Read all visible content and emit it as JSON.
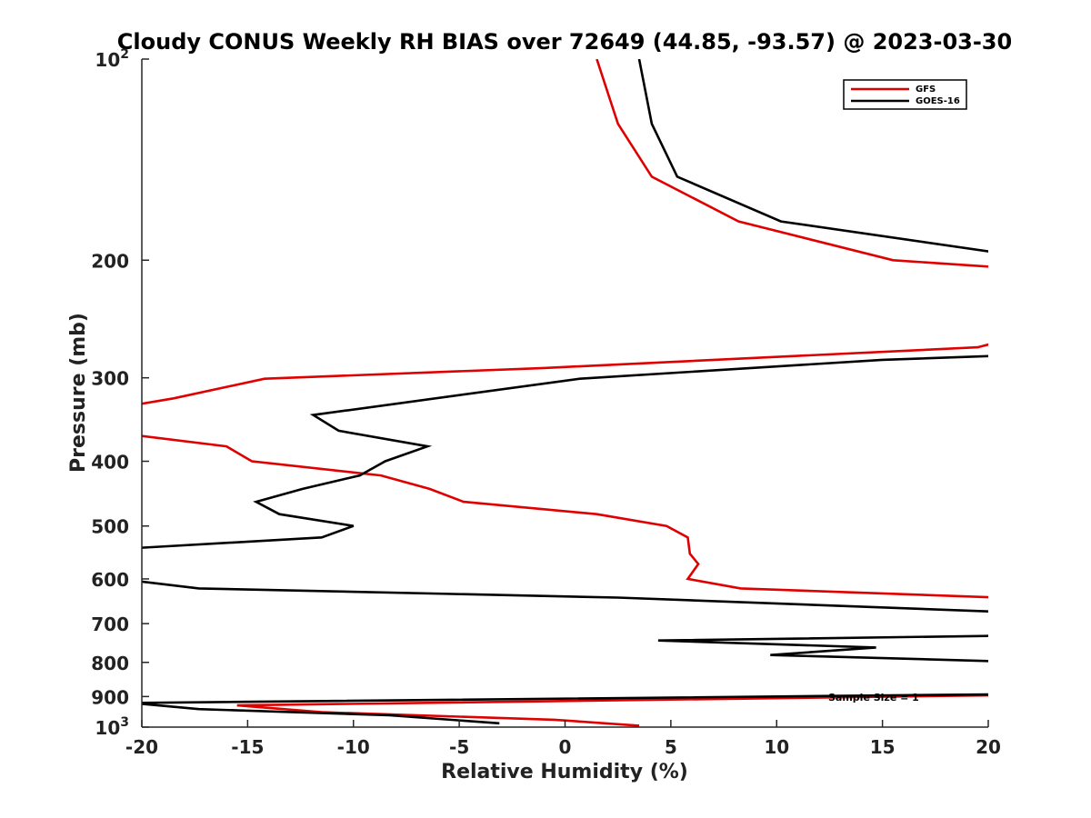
{
  "chart_data": {
    "type": "line",
    "title": "Cloudy CONUS Weekly RH BIAS over 72649 (44.85, -93.57) @ 2023-03-30",
    "xlabel": "Relative Humidity (%)",
    "ylabel": "Pressure (mb)",
    "xlim": [
      -20,
      20
    ],
    "ylim": [
      100,
      1000
    ],
    "yscale": "log",
    "y_reversed": true,
    "grid": false,
    "legend_position": "top-right",
    "x_ticks": [
      "-20",
      "-15",
      "-10",
      "-5",
      "0",
      "5",
      "10",
      "15",
      "20"
    ],
    "y_ticks": [
      {
        "value": 100,
        "base": "10",
        "exp": "2"
      },
      {
        "value": 200,
        "label": "200"
      },
      {
        "value": 300,
        "label": "300"
      },
      {
        "value": 400,
        "label": "400"
      },
      {
        "value": 500,
        "label": "500"
      },
      {
        "value": 600,
        "label": "600"
      },
      {
        "value": 700,
        "label": "700"
      },
      {
        "value": 800,
        "label": "800"
      },
      {
        "value": 900,
        "label": "900"
      },
      {
        "value": 1000,
        "base": "10",
        "exp": "3"
      }
    ],
    "annotation": "Sample Size = 1",
    "series": [
      {
        "name": "GFS",
        "color": "#e00000",
        "points": [
          {
            "x": 1.5,
            "y": 100
          },
          {
            "x": 2.5,
            "y": 125
          },
          {
            "x": 4.1,
            "y": 150
          },
          {
            "x": 8.2,
            "y": 175
          },
          {
            "x": 15.5,
            "y": 200
          },
          {
            "x": 20.5,
            "y": 205
          },
          {
            "x": 20.5,
            "y": 265
          },
          {
            "x": 19.5,
            "y": 270
          },
          {
            "x": -1.0,
            "y": 290
          },
          {
            "x": -14.2,
            "y": 301
          },
          {
            "x": -18.5,
            "y": 322
          },
          {
            "x": -20.5,
            "y": 330
          },
          {
            "x": -20.5,
            "y": 365
          },
          {
            "x": -16.0,
            "y": 380
          },
          {
            "x": -14.8,
            "y": 400
          },
          {
            "x": -8.7,
            "y": 420
          },
          {
            "x": -6.4,
            "y": 440
          },
          {
            "x": -4.8,
            "y": 460
          },
          {
            "x": 1.5,
            "y": 480
          },
          {
            "x": 4.8,
            "y": 500
          },
          {
            "x": 5.8,
            "y": 520
          },
          {
            "x": 5.9,
            "y": 550
          },
          {
            "x": 6.3,
            "y": 570
          },
          {
            "x": 5.8,
            "y": 600
          },
          {
            "x": 8.3,
            "y": 620
          },
          {
            "x": 20.5,
            "y": 640
          },
          {
            "x": 20.5,
            "y": 896
          },
          {
            "x": -15.5,
            "y": 928
          },
          {
            "x": -11.5,
            "y": 950
          },
          {
            "x": -0.5,
            "y": 975
          },
          {
            "x": 3.5,
            "y": 995
          }
        ]
      },
      {
        "name": "GOES-16",
        "color": "#000000",
        "points": [
          {
            "x": 3.5,
            "y": 100
          },
          {
            "x": 4.1,
            "y": 125
          },
          {
            "x": 5.3,
            "y": 150
          },
          {
            "x": 10.2,
            "y": 175
          },
          {
            "x": 20.5,
            "y": 195
          },
          {
            "x": 20.5,
            "y": 278
          },
          {
            "x": 15.0,
            "y": 282
          },
          {
            "x": 0.7,
            "y": 301
          },
          {
            "x": -11.9,
            "y": 341
          },
          {
            "x": -10.7,
            "y": 360
          },
          {
            "x": -6.5,
            "y": 380
          },
          {
            "x": -8.5,
            "y": 400
          },
          {
            "x": -9.7,
            "y": 420
          },
          {
            "x": -12.4,
            "y": 440
          },
          {
            "x": -14.6,
            "y": 460
          },
          {
            "x": -13.5,
            "y": 480
          },
          {
            "x": -10.0,
            "y": 500
          },
          {
            "x": -11.5,
            "y": 520
          },
          {
            "x": -20.5,
            "y": 540
          },
          {
            "x": -20.5,
            "y": 603
          },
          {
            "x": -17.3,
            "y": 620
          },
          {
            "x": 2.5,
            "y": 640
          },
          {
            "x": 20.5,
            "y": 672
          },
          {
            "x": 20.5,
            "y": 730
          },
          {
            "x": 4.4,
            "y": 742
          },
          {
            "x": 14.7,
            "y": 760
          },
          {
            "x": 9.7,
            "y": 780
          },
          {
            "x": 20.5,
            "y": 797
          },
          {
            "x": 20.5,
            "y": 893
          },
          {
            "x": -20.5,
            "y": 920
          },
          {
            "x": -17.3,
            "y": 940
          },
          {
            "x": -8.3,
            "y": 960
          },
          {
            "x": -3.1,
            "y": 987
          }
        ]
      }
    ]
  }
}
